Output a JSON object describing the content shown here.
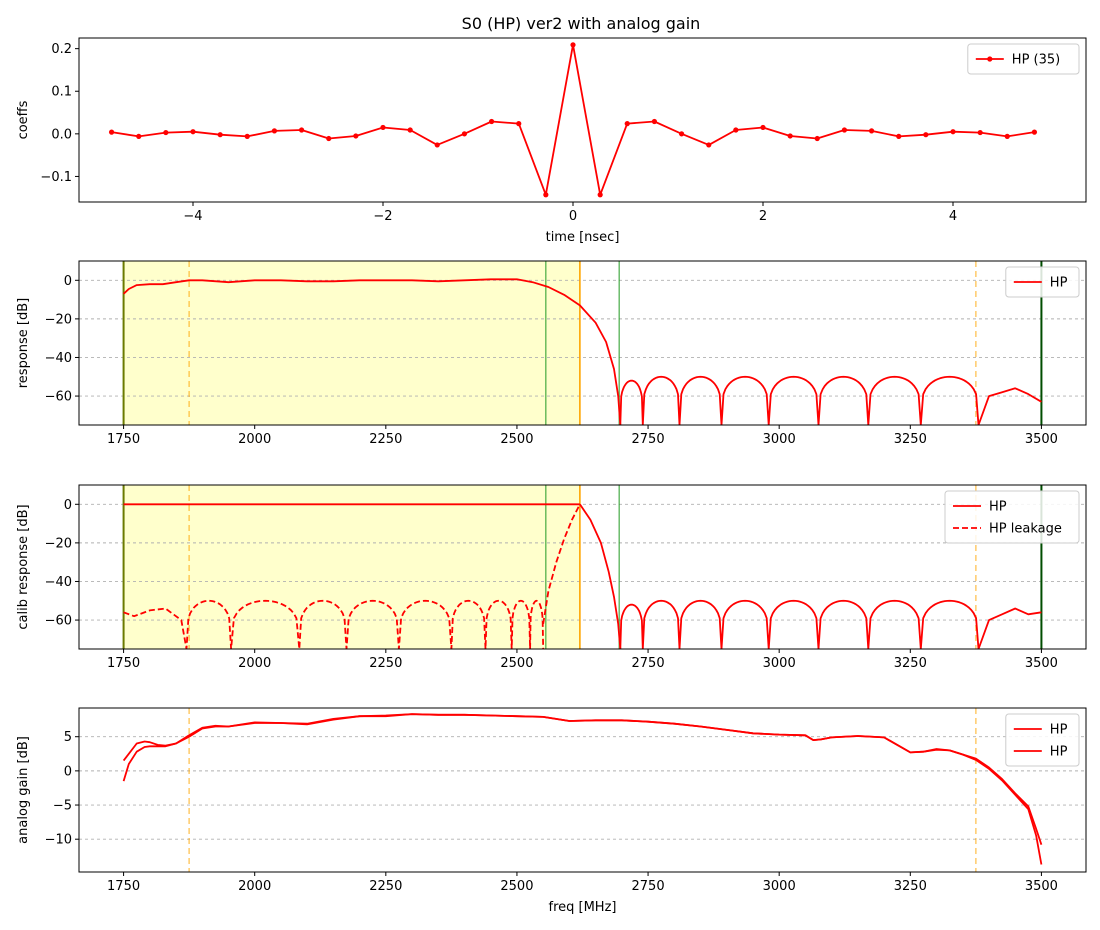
{
  "figure": {
    "title": "S0 (HP)   ver2   with analog gain",
    "colors": {
      "trace": "#ff0000",
      "passband_fill": "#ffffcc",
      "guard_line": "#ffa500",
      "green_line": "#2ca02c",
      "dark_green": "#004d00",
      "grid": "#b0b0b0"
    }
  },
  "chart_data": [
    {
      "type": "line",
      "id": "coeffs",
      "xlabel": "time [nsec]",
      "ylabel": "coeffs",
      "xlim": [
        -5.2,
        5.4
      ],
      "ylim": [
        -0.16,
        0.225
      ],
      "xticks": [
        -4,
        -2,
        0,
        2,
        4
      ],
      "xtick_labels": [
        "−4",
        "−2",
        "0",
        "2",
        "4"
      ],
      "yticks": [
        -0.1,
        0.0,
        0.1,
        0.2
      ],
      "ytick_labels": [
        "−0.1",
        "0.0",
        "0.1",
        "0.2"
      ],
      "grid": false,
      "legend": {
        "placement": "upper-right",
        "entries": [
          "HP (35)"
        ]
      },
      "series": [
        {
          "name": "HP (35)",
          "marker": "dot",
          "x": [
            -4.857,
            -4.571,
            -4.286,
            -4.0,
            -3.714,
            -3.429,
            -3.143,
            -2.857,
            -2.571,
            -2.286,
            -2.0,
            -1.714,
            -1.429,
            -1.143,
            -0.857,
            -0.571,
            -0.286,
            0.0,
            0.286,
            0.571,
            0.857,
            1.143,
            1.429,
            1.714,
            2.0,
            2.286,
            2.571,
            2.857,
            3.143,
            3.429,
            3.714,
            4.0,
            4.286,
            4.571,
            4.857
          ],
          "y": [
            0.004,
            -0.006,
            0.003,
            0.005,
            -0.002,
            -0.006,
            0.007,
            0.009,
            -0.011,
            -0.005,
            0.015,
            0.009,
            -0.026,
            0.0,
            0.029,
            0.024,
            -0.143,
            0.209,
            -0.143,
            0.024,
            0.029,
            0.0,
            -0.026,
            0.009,
            0.015,
            -0.005,
            -0.011,
            0.009,
            0.007,
            -0.006,
            -0.002,
            0.005,
            0.003,
            -0.006,
            0.004
          ]
        }
      ]
    },
    {
      "type": "line",
      "id": "response",
      "ylabel": "response [dB]",
      "xlim": [
        1665,
        3585
      ],
      "ylim": [
        -75,
        10
      ],
      "xticks": [
        1750,
        2000,
        2250,
        2500,
        2750,
        3000,
        3250,
        3500
      ],
      "xtick_labels": [
        "1750",
        "2000",
        "2250",
        "2500",
        "2750",
        "3000",
        "3250",
        "3500"
      ],
      "yticks": [
        0,
        -20,
        -40,
        -60
      ],
      "ytick_labels": [
        "0",
        "−20",
        "−40",
        "−60"
      ],
      "grid": "y-dashed",
      "legend": {
        "placement": "upper-right",
        "entries": [
          "HP"
        ]
      },
      "passband_shade": [
        1750,
        2620
      ],
      "vlines": {
        "orange_dashed": [
          1875,
          3375
        ],
        "orange_solid": [
          2620
        ],
        "green": [
          2555,
          2695
        ],
        "dark_green": [
          1750,
          3500
        ]
      },
      "series": [
        {
          "name": "HP",
          "passband": {
            "x": [
              1750,
              1760,
              1775,
              1800,
              1825,
              1850,
              1875,
              1900,
              1950,
              2000,
              2050,
              2100,
              2150,
              2200,
              2250,
              2300,
              2350,
              2400,
              2450,
              2500,
              2530,
              2560,
              2590,
              2620,
              2650,
              2670,
              2685,
              2693,
              2697
            ],
            "y": [
              -7,
              -4.5,
              -2.5,
              -2,
              -2,
              -1,
              0,
              0,
              -1,
              0,
              0,
              -0.5,
              -0.5,
              0,
              0,
              0,
              -0.5,
              0,
              0.5,
              0.5,
              -1,
              -3.5,
              -7.5,
              -13,
              -22,
              -32,
              -46,
              -60,
              -75
            ]
          },
          "stopband": {
            "start": 2697,
            "end": 3500,
            "null_freqs": [
              2697,
              2740,
              2810,
              2890,
              2980,
              3075,
              3170,
              3270,
              3380
            ],
            "lobe_peaks": [
              -52,
              -50,
              -50,
              -50,
              -50,
              -50,
              -50,
              -50
            ],
            "tail": {
              "x": [
                3380,
                3400,
                3425,
                3450,
                3475,
                3500
              ],
              "y": [
                -75,
                -60,
                -58,
                -56,
                -59,
                -63
              ]
            }
          }
        }
      ]
    },
    {
      "type": "line",
      "id": "calib_response",
      "ylabel": "calib response [dB]",
      "xlim": [
        1665,
        3585
      ],
      "ylim": [
        -75,
        10
      ],
      "xticks": [
        1750,
        2000,
        2250,
        2500,
        2750,
        3000,
        3250,
        3500
      ],
      "xtick_labels": [
        "1750",
        "2000",
        "2250",
        "2500",
        "2750",
        "3000",
        "3250",
        "3500"
      ],
      "yticks": [
        0,
        -20,
        -40,
        -60
      ],
      "ytick_labels": [
        "0",
        "−20",
        "−40",
        "−60"
      ],
      "grid": "y-dashed",
      "legend": {
        "placement": "upper-right",
        "entries": [
          "HP",
          "HP leakage"
        ]
      },
      "passband_shade": [
        1750,
        2620
      ],
      "vlines": {
        "orange_dashed": [
          1875,
          3375
        ],
        "orange_solid": [
          2620
        ],
        "green": [
          2555,
          2695
        ],
        "dark_green": [
          1750,
          3500
        ]
      },
      "series": [
        {
          "name": "HP",
          "flat": {
            "x": [
              1750,
              2620
            ],
            "y": [
              0,
              0
            ]
          },
          "rolloff": {
            "x": [
              2620,
              2640,
              2660,
              2675,
              2685,
              2693,
              2697
            ],
            "y": [
              0,
              -8,
              -20,
              -35,
              -48,
              -62,
              -75
            ]
          },
          "stopband": {
            "start": 2697,
            "end": 3500,
            "null_freqs": [
              2697,
              2740,
              2810,
              2890,
              2980,
              3075,
              3170,
              3270,
              3380
            ],
            "lobe_peaks": [
              -52,
              -50,
              -50,
              -50,
              -50,
              -50,
              -50,
              -50
            ],
            "tail": {
              "x": [
                3380,
                3400,
                3425,
                3450,
                3475,
                3500
              ],
              "y": [
                -75,
                -60,
                -57,
                -54,
                -57,
                -56
              ]
            }
          }
        },
        {
          "name": "HP leakage",
          "dashed": true,
          "head": {
            "x": [
              1750,
              1770,
              1800,
              1830,
              1860
            ],
            "y": [
              -56,
              -58,
              -55,
              -54,
              -60
            ]
          },
          "null_freqs": [
            1870,
            1955,
            2085,
            2175,
            2275,
            2375,
            2440,
            2490,
            2525,
            2550
          ],
          "lobe_peaks": [
            -50,
            -50,
            -50,
            -50,
            -50,
            -50,
            -50,
            -50,
            -50
          ],
          "rise": {
            "x": [
              2550,
              2560,
              2575,
              2590,
              2605,
              2620
            ],
            "y": [
              -62,
              -45,
              -30,
              -18,
              -8,
              0
            ]
          }
        }
      ]
    },
    {
      "type": "line",
      "id": "analog_gain",
      "xlabel": "freq [MHz]",
      "ylabel": "analog gain [dB]",
      "xlim": [
        1665,
        3585
      ],
      "ylim": [
        -14.8,
        9.2
      ],
      "xticks": [
        1750,
        2000,
        2250,
        2500,
        2750,
        3000,
        3250,
        3500
      ],
      "xtick_labels": [
        "1750",
        "2000",
        "2250",
        "2500",
        "2750",
        "3000",
        "3250",
        "3500"
      ],
      "yticks": [
        5,
        0,
        -5,
        -10
      ],
      "ytick_labels": [
        "5",
        "0",
        "−5",
        "−10"
      ],
      "grid": "y-dashed",
      "legend": {
        "placement": "upper-right",
        "entries": [
          "HP",
          "HP"
        ]
      },
      "vlines": {
        "orange_dashed": [
          1875,
          3375
        ]
      },
      "series": [
        {
          "name": "HP",
          "x": [
            1750,
            1760,
            1775,
            1790,
            1800,
            1815,
            1830,
            1850,
            1875,
            1900,
            1925,
            1950,
            2000,
            2050,
            2100,
            2150,
            2200,
            2250,
            2300,
            2350,
            2400,
            2450,
            2500,
            2550,
            2600,
            2650,
            2700,
            2750,
            2800,
            2850,
            2900,
            2950,
            3000,
            3050,
            3065,
            3080,
            3100,
            3150,
            3200,
            3250,
            3275,
            3300,
            3325,
            3350,
            3375,
            3400,
            3425,
            3450,
            3475,
            3490,
            3500
          ],
          "y": [
            1.5,
            2.5,
            4.0,
            4.3,
            4.2,
            3.8,
            3.7,
            4.0,
            5.2,
            6.3,
            6.6,
            6.5,
            7.0,
            7.0,
            6.8,
            7.5,
            8.0,
            8.0,
            8.3,
            8.2,
            8.2,
            8.1,
            8.0,
            7.9,
            7.3,
            7.4,
            7.4,
            7.2,
            6.9,
            6.5,
            6.0,
            5.5,
            5.3,
            5.2,
            4.5,
            4.6,
            4.9,
            5.1,
            4.9,
            2.7,
            2.8,
            3.2,
            3.0,
            2.4,
            1.8,
            0.5,
            -1.2,
            -3.3,
            -5.2,
            -8.5,
            -10.8
          ]
        },
        {
          "name": "HP",
          "x": [
            1750,
            1760,
            1775,
            1790,
            1800,
            1815,
            1830,
            1850,
            1875,
            1900,
            1925,
            1950,
            2000,
            2050,
            2100,
            2150,
            2200,
            2250,
            2300,
            2350,
            2400,
            2450,
            2500,
            2550,
            2600,
            2650,
            2700,
            2750,
            2800,
            2850,
            2900,
            2950,
            3000,
            3050,
            3065,
            3080,
            3100,
            3150,
            3200,
            3250,
            3275,
            3300,
            3325,
            3350,
            3375,
            3400,
            3425,
            3450,
            3475,
            3490,
            3500
          ],
          "y": [
            -1.5,
            1.0,
            2.8,
            3.5,
            3.6,
            3.6,
            3.6,
            4.0,
            5.0,
            6.2,
            6.5,
            6.5,
            7.1,
            7.0,
            6.9,
            7.6,
            8.0,
            8.1,
            8.3,
            8.2,
            8.2,
            8.1,
            8.0,
            7.9,
            7.3,
            7.4,
            7.4,
            7.2,
            6.9,
            6.5,
            6.0,
            5.5,
            5.3,
            5.2,
            4.5,
            4.6,
            4.9,
            5.1,
            4.9,
            2.7,
            2.8,
            3.1,
            3.0,
            2.4,
            1.6,
            0.3,
            -1.4,
            -3.5,
            -5.6,
            -9.5,
            -13.7
          ]
        }
      ]
    }
  ]
}
